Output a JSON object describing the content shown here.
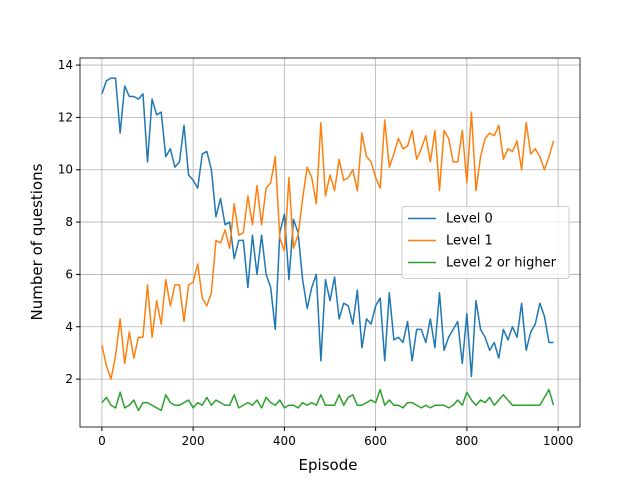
{
  "chart_data": {
    "type": "line",
    "xlabel": "Episode",
    "ylabel": "Number of questions",
    "x": [
      0,
      10,
      20,
      30,
      40,
      50,
      60,
      70,
      80,
      90,
      100,
      110,
      120,
      130,
      140,
      150,
      160,
      170,
      180,
      190,
      200,
      210,
      220,
      230,
      240,
      250,
      260,
      270,
      280,
      290,
      300,
      310,
      320,
      330,
      340,
      350,
      360,
      370,
      380,
      390,
      400,
      410,
      420,
      430,
      440,
      450,
      460,
      470,
      480,
      490,
      500,
      510,
      520,
      530,
      540,
      550,
      560,
      570,
      580,
      590,
      600,
      610,
      620,
      630,
      640,
      650,
      660,
      670,
      680,
      690,
      700,
      710,
      720,
      730,
      740,
      750,
      760,
      770,
      780,
      790,
      800,
      810,
      820,
      830,
      840,
      850,
      860,
      870,
      880,
      890,
      900,
      910,
      920,
      930,
      940,
      950,
      960,
      970,
      980,
      990
    ],
    "series": [
      {
        "name": "Level 0",
        "color": "#1f77b4",
        "values": [
          12.9,
          13.4,
          13.5,
          13.5,
          11.4,
          13.2,
          12.8,
          12.8,
          12.7,
          12.9,
          10.3,
          12.7,
          12.1,
          12.2,
          10.5,
          10.8,
          10.1,
          10.3,
          11.7,
          9.8,
          9.6,
          9.3,
          10.6,
          10.7,
          10.0,
          8.2,
          8.9,
          7.9,
          8.0,
          6.6,
          7.3,
          7.3,
          5.5,
          7.5,
          6.0,
          7.5,
          6.0,
          5.5,
          3.9,
          7.6,
          8.3,
          5.8,
          8.1,
          7.6,
          5.8,
          4.7,
          5.5,
          6.0,
          2.7,
          5.8,
          5.0,
          5.9,
          4.3,
          4.9,
          4.8,
          4.1,
          5.4,
          3.2,
          4.3,
          4.1,
          4.8,
          5.1,
          2.7,
          5.3,
          3.5,
          3.6,
          3.4,
          4.2,
          2.7,
          3.9,
          3.9,
          3.4,
          4.3,
          3.2,
          5.3,
          3.1,
          3.6,
          3.9,
          4.2,
          2.6,
          4.5,
          2.1,
          5.0,
          3.9,
          3.6,
          3.1,
          3.4,
          2.8,
          3.9,
          3.5,
          4.0,
          3.6,
          4.9,
          3.1,
          3.8,
          4.1,
          4.9,
          4.4,
          3.4,
          3.4
        ]
      },
      {
        "name": "Level 1",
        "color": "#ff7f0e",
        "values": [
          3.3,
          2.5,
          2.0,
          2.9,
          4.3,
          2.6,
          3.8,
          2.8,
          3.6,
          3.6,
          5.6,
          3.6,
          5.0,
          4.1,
          5.8,
          4.8,
          5.6,
          5.6,
          4.2,
          5.6,
          5.7,
          6.4,
          5.1,
          4.8,
          5.3,
          7.3,
          7.2,
          7.7,
          7.0,
          8.7,
          7.5,
          7.6,
          9.0,
          7.9,
          9.4,
          7.9,
          9.3,
          9.5,
          10.5,
          7.4,
          6.9,
          9.7,
          7.0,
          7.5,
          8.9,
          10.1,
          9.7,
          8.7,
          11.8,
          9.0,
          9.8,
          9.2,
          10.4,
          9.6,
          9.7,
          10.0,
          9.2,
          11.4,
          10.5,
          10.3,
          9.7,
          9.3,
          11.9,
          10.1,
          10.6,
          11.2,
          10.8,
          10.9,
          11.5,
          10.4,
          10.8,
          11.3,
          10.3,
          11.5,
          9.2,
          11.5,
          11.2,
          10.3,
          10.3,
          11.5,
          9.5,
          12.2,
          9.2,
          10.5,
          11.2,
          11.4,
          11.3,
          11.7,
          10.4,
          10.8,
          10.7,
          11.1,
          10.0,
          11.8,
          10.6,
          10.8,
          10.5,
          10.0,
          10.5,
          11.1
        ]
      },
      {
        "name": "Level 2 or higher",
        "color": "#2ca02c",
        "values": [
          1.1,
          1.3,
          1.0,
          0.9,
          1.5,
          0.9,
          1.0,
          1.2,
          0.8,
          1.1,
          1.1,
          1.0,
          0.9,
          0.8,
          1.4,
          1.1,
          1.0,
          1.0,
          1.1,
          1.2,
          0.9,
          1.1,
          1.0,
          1.3,
          1.0,
          1.2,
          1.1,
          1.0,
          1.0,
          1.4,
          0.9,
          1.0,
          1.1,
          1.0,
          1.2,
          0.9,
          1.3,
          1.1,
          1.0,
          1.2,
          0.9,
          1.0,
          1.0,
          0.9,
          1.1,
          1.0,
          1.1,
          1.0,
          1.4,
          1.0,
          1.0,
          1.0,
          1.4,
          1.0,
          1.3,
          1.4,
          1.0,
          1.0,
          1.1,
          1.2,
          1.1,
          1.6,
          1.0,
          1.2,
          1.0,
          1.0,
          0.9,
          1.1,
          1.1,
          1.0,
          0.9,
          1.0,
          0.9,
          1.0,
          1.0,
          1.0,
          0.9,
          1.0,
          1.2,
          1.0,
          1.5,
          1.2,
          1.0,
          1.2,
          1.1,
          1.3,
          1.0,
          1.2,
          1.4,
          1.2,
          1.0,
          1.0,
          1.0,
          1.0,
          1.0,
          1.0,
          1.0,
          1.3,
          1.6,
          1.0
        ]
      }
    ],
    "xlim": [
      -48,
      1048
    ],
    "ylim": [
      0.17,
      14.27
    ],
    "xticks": [
      0,
      200,
      400,
      600,
      800,
      1000
    ],
    "yticks": [
      2,
      4,
      6,
      8,
      10,
      12,
      14
    ],
    "grid": true,
    "legend": "center right"
  }
}
